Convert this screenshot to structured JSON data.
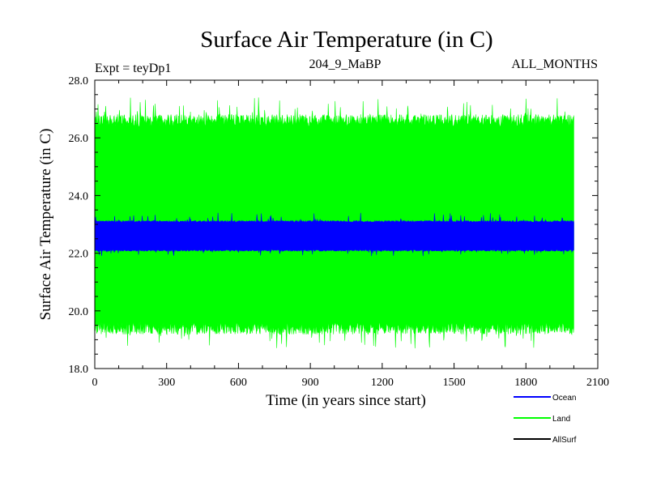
{
  "chart_data": {
    "type": "line",
    "title": "Surface Air Temperature (in C)",
    "subtitle_left": "Expt = teyDp1",
    "subtitle_center": "204_9_MaBP",
    "subtitle_right": "ALL_MONTHS",
    "xlabel": "Time (in years since start)",
    "ylabel": "Surface Air Temperature (in C)",
    "xlim": [
      0,
      2100
    ],
    "ylim": [
      18.0,
      28.0
    ],
    "x_ticks": [
      0,
      300,
      600,
      900,
      1200,
      1500,
      1800,
      2100
    ],
    "x_tick_labels": [
      "0",
      "300",
      "600",
      "900",
      "1200",
      "1500",
      "1800",
      "2100"
    ],
    "y_ticks": [
      18.0,
      20.0,
      22.0,
      24.0,
      26.0,
      28.0
    ],
    "y_tick_labels": [
      "18.0",
      "20.0",
      "22.0",
      "24.0",
      "26.0",
      "28.0"
    ],
    "x_data_range": [
      0,
      2000
    ],
    "legend_position": "bottom-right",
    "series": [
      {
        "name": "Land",
        "color": "#00ff00",
        "envelope": {
          "typical_min": 19.4,
          "typical_max": 26.6,
          "extreme_min": 18.7,
          "extreme_max": 27.4
        }
      },
      {
        "name": "Ocean",
        "color": "#0000ff",
        "envelope": {
          "typical_min": 22.1,
          "typical_max": 23.1,
          "extreme_min": 21.9,
          "extreme_max": 23.4
        }
      },
      {
        "name": "AllSurf",
        "color": "#000000",
        "envelope": null
      }
    ]
  }
}
